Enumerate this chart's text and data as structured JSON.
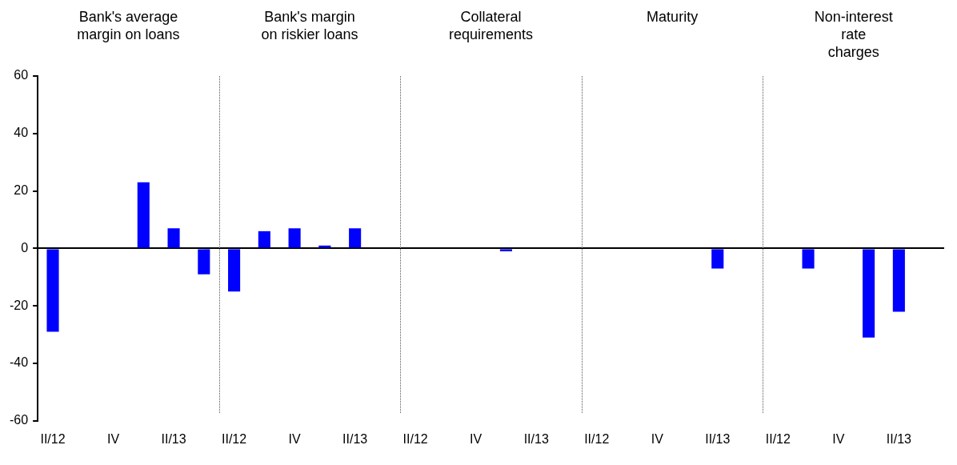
{
  "chart_data": {
    "type": "bar",
    "annotations": [
      "Bank's average\nmargin on loans",
      "Bank's margin\non riskier loans",
      "Collateral\nrequirements",
      "Maturity",
      "Non-interest rate\ncharges"
    ],
    "categories": [
      "II/12",
      null,
      "IV",
      null,
      "II/13",
      null,
      "II/12",
      null,
      "IV",
      null,
      "II/13",
      null,
      "II/12",
      null,
      "IV",
      null,
      "II/13",
      null,
      "II/12",
      null,
      "IV",
      null,
      "II/13",
      null,
      "II/12",
      null,
      "IV",
      null,
      "II/13",
      null
    ],
    "series": [
      {
        "color": "#0000ff",
        "values": [
          -29,
          0,
          0,
          23,
          7,
          -9,
          -15,
          6,
          7,
          1,
          7,
          0,
          0,
          0,
          0,
          -1,
          0,
          0,
          0,
          0,
          0,
          0,
          -7,
          0,
          0,
          -7,
          0,
          -31,
          -22,
          0
        ]
      }
    ],
    "ylim": [
      -60,
      60
    ],
    "yticks": [
      -60,
      -40,
      -20,
      0,
      20,
      40,
      60
    ],
    "grid": false,
    "legend": false
  }
}
